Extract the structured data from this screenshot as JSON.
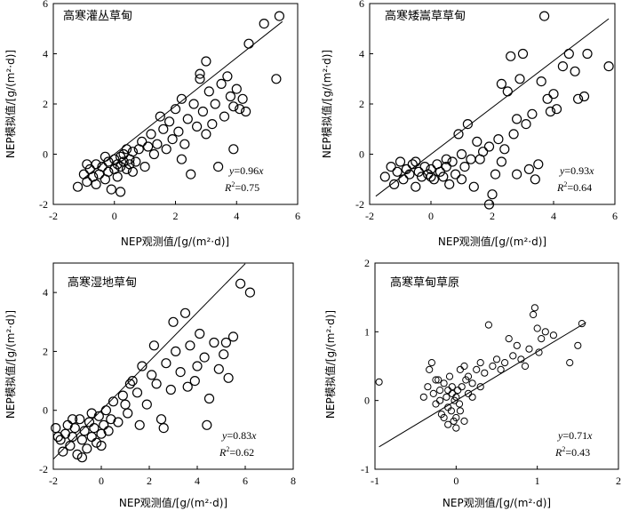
{
  "chart_data": [
    {
      "type": "scatter",
      "title": "高寒灌丛草甸",
      "xlabel": "NEP观测值/[g/(m²·d)]",
      "ylabel": "NEP模拟值/[g/(m²·d)]",
      "xlim": [
        -2,
        6
      ],
      "ylim": [
        -2,
        6
      ],
      "xticks": [
        -2,
        0,
        2,
        4,
        6
      ],
      "yticks": [
        -2,
        0,
        2,
        4,
        6
      ],
      "fit": {
        "slope": 0.96,
        "x_range": [
          -1,
          5.5
        ]
      },
      "equation": {
        "y": "y",
        "eq": "=0.96",
        "x": "x"
      },
      "r2": {
        "r": "R",
        "sup": "2",
        "val": "=0.75"
      },
      "marker_size": 5,
      "points": [
        [
          -1.2,
          -1.3
        ],
        [
          -1.0,
          -0.8
        ],
        [
          -0.9,
          -1.1
        ],
        [
          -0.8,
          -0.6
        ],
        [
          -0.7,
          -0.9
        ],
        [
          -0.6,
          -0.4
        ],
        [
          -0.5,
          -0.8
        ],
        [
          -0.4,
          -0.5
        ],
        [
          -0.3,
          -1.0
        ],
        [
          -0.2,
          -0.3
        ],
        [
          -0.2,
          -0.7
        ],
        [
          -0.1,
          -1.4
        ],
        [
          0.0,
          -0.2
        ],
        [
          0.0,
          -0.6
        ],
        [
          0.1,
          -0.4
        ],
        [
          0.1,
          -0.9
        ],
        [
          0.2,
          -0.1
        ],
        [
          0.2,
          -0.5
        ],
        [
          0.3,
          0.0
        ],
        [
          0.3,
          -0.3
        ],
        [
          0.4,
          -0.6
        ],
        [
          0.4,
          0.2
        ],
        [
          0.5,
          -0.2
        ],
        [
          0.5,
          -0.4
        ],
        [
          0.6,
          0.1
        ],
        [
          0.7,
          -0.3
        ],
        [
          0.8,
          0.2
        ],
        [
          0.9,
          0.5
        ],
        [
          1.0,
          -0.5
        ],
        [
          1.1,
          0.3
        ],
        [
          1.2,
          0.8
        ],
        [
          1.4,
          0.4
        ],
        [
          1.5,
          1.5
        ],
        [
          1.6,
          1.0
        ],
        [
          1.7,
          0.2
        ],
        [
          1.8,
          1.3
        ],
        [
          1.9,
          0.6
        ],
        [
          2.0,
          1.8
        ],
        [
          2.1,
          0.9
        ],
        [
          2.2,
          2.2
        ],
        [
          2.3,
          0.4
        ],
        [
          2.4,
          1.4
        ],
        [
          2.5,
          -0.8
        ],
        [
          2.6,
          2.0
        ],
        [
          2.7,
          1.1
        ],
        [
          2.8,
          3.0
        ],
        [
          2.9,
          1.7
        ],
        [
          3.0,
          0.8
        ],
        [
          3.1,
          2.5
        ],
        [
          3.2,
          1.2
        ],
        [
          3.3,
          2.0
        ],
        [
          3.4,
          -0.5
        ],
        [
          3.5,
          2.8
        ],
        [
          3.6,
          1.5
        ],
        [
          3.7,
          3.1
        ],
        [
          3.8,
          2.3
        ],
        [
          3.9,
          1.9
        ],
        [
          4.0,
          2.6
        ],
        [
          4.1,
          1.8
        ],
        [
          4.2,
          2.2
        ],
        [
          4.3,
          1.7
        ],
        [
          4.4,
          4.4
        ],
        [
          4.9,
          5.2
        ],
        [
          5.3,
          3.0
        ],
        [
          5.4,
          5.5
        ],
        [
          -0.9,
          -0.4
        ],
        [
          -0.6,
          -1.2
        ],
        [
          -0.3,
          -0.1
        ],
        [
          0.2,
          -1.5
        ],
        [
          0.6,
          -0.7
        ],
        [
          1.3,
          0.0
        ],
        [
          2.2,
          -0.2
        ],
        [
          3.0,
          3.7
        ],
        [
          2.8,
          3.2
        ],
        [
          3.9,
          0.2
        ]
      ]
    },
    {
      "type": "scatter",
      "title": "高寒矮嵩草草甸",
      "xlabel": "NEP观测值/[g/(m²·d)]",
      "ylabel": "NEP模拟值/[g/(m²·d)]",
      "xlim": [
        -2,
        6
      ],
      "ylim": [
        -2,
        6
      ],
      "xticks": [
        -2,
        0,
        2,
        4,
        6
      ],
      "yticks": [
        -2,
        0,
        2,
        4,
        6
      ],
      "fit": {
        "slope": 0.93,
        "x_range": [
          -1.8,
          5.8
        ]
      },
      "equation": {
        "y": "y",
        "eq": "=0.93",
        "x": "x"
      },
      "r2": {
        "r": "R",
        "sup": "2",
        "val": "=0.64"
      },
      "marker_size": 5,
      "points": [
        [
          -1.5,
          -0.9
        ],
        [
          -1.3,
          -0.5
        ],
        [
          -1.2,
          -1.2
        ],
        [
          -1.1,
          -0.7
        ],
        [
          -1.0,
          -0.3
        ],
        [
          -0.9,
          -1.0
        ],
        [
          -0.8,
          -0.6
        ],
        [
          -0.7,
          -0.8
        ],
        [
          -0.6,
          -0.4
        ],
        [
          -0.5,
          -1.3
        ],
        [
          -0.4,
          -0.7
        ],
        [
          -0.3,
          -0.9
        ],
        [
          -0.2,
          -0.5
        ],
        [
          -0.1,
          -0.8
        ],
        [
          0.0,
          -0.6
        ],
        [
          0.1,
          -1.0
        ],
        [
          0.2,
          -0.4
        ],
        [
          0.3,
          -0.7
        ],
        [
          0.4,
          -0.9
        ],
        [
          0.5,
          -0.5
        ],
        [
          0.6,
          -1.2
        ],
        [
          0.7,
          -0.3
        ],
        [
          0.8,
          -0.8
        ],
        [
          0.9,
          0.8
        ],
        [
          1.0,
          -1.0
        ],
        [
          1.1,
          -0.5
        ],
        [
          1.2,
          1.2
        ],
        [
          1.4,
          -1.3
        ],
        [
          1.5,
          0.5
        ],
        [
          1.6,
          -0.2
        ],
        [
          1.7,
          0.1
        ],
        [
          1.9,
          0.3
        ],
        [
          2.0,
          -1.6
        ],
        [
          2.1,
          -0.8
        ],
        [
          2.2,
          0.6
        ],
        [
          2.3,
          2.8
        ],
        [
          2.4,
          0.2
        ],
        [
          2.5,
          2.5
        ],
        [
          2.6,
          3.9
        ],
        [
          2.7,
          0.8
        ],
        [
          2.8,
          1.4
        ],
        [
          2.9,
          3.0
        ],
        [
          3.0,
          4.0
        ],
        [
          3.1,
          1.2
        ],
        [
          3.2,
          -0.6
        ],
        [
          3.3,
          1.6
        ],
        [
          3.5,
          -0.4
        ],
        [
          3.6,
          2.9
        ],
        [
          3.7,
          5.5
        ],
        [
          3.8,
          2.2
        ],
        [
          3.9,
          1.7
        ],
        [
          4.0,
          2.4
        ],
        [
          4.1,
          1.8
        ],
        [
          4.3,
          3.5
        ],
        [
          4.5,
          4.0
        ],
        [
          4.7,
          3.3
        ],
        [
          4.8,
          2.2
        ],
        [
          5.0,
          2.3
        ],
        [
          5.1,
          4.0
        ],
        [
          5.8,
          3.5
        ],
        [
          -0.5,
          -0.3
        ],
        [
          0.0,
          -0.9
        ],
        [
          0.5,
          -0.2
        ],
        [
          1.0,
          0.0
        ],
        [
          1.3,
          -0.2
        ],
        [
          2.3,
          -0.3
        ],
        [
          2.8,
          -0.8
        ],
        [
          3.4,
          -1.0
        ],
        [
          1.9,
          -2.0
        ]
      ]
    },
    {
      "type": "scatter",
      "title": "高寒湿地草甸",
      "xlabel": "NEP观测值/[g/(m²·d)]",
      "ylabel": "NEP模拟值/[g/(m²·d)]",
      "xlim": [
        -2,
        8
      ],
      "ylim": [
        -2,
        5
      ],
      "xticks": [
        -2,
        0,
        2,
        4,
        6,
        8
      ],
      "yticks": [
        -2,
        0,
        2,
        4
      ],
      "fit": {
        "slope": 0.83,
        "x_range": [
          -2.0,
          6.0
        ]
      },
      "equation": {
        "y": "y",
        "eq": "=0.83",
        "x": "x"
      },
      "r2": {
        "r": "R",
        "sup": "2",
        "val": "=0.62"
      },
      "marker_size": 5,
      "points": [
        [
          -1.9,
          -0.6
        ],
        [
          -1.7,
          -1.0
        ],
        [
          -1.6,
          -1.4
        ],
        [
          -1.5,
          -0.8
        ],
        [
          -1.4,
          -0.5
        ],
        [
          -1.3,
          -1.2
        ],
        [
          -1.2,
          -0.9
        ],
        [
          -1.1,
          -0.6
        ],
        [
          -1.0,
          -1.5
        ],
        [
          -0.9,
          -0.3
        ],
        [
          -0.8,
          -1.0
        ],
        [
          -0.7,
          -0.7
        ],
        [
          -0.6,
          -1.3
        ],
        [
          -0.5,
          -0.4
        ],
        [
          -0.4,
          -0.9
        ],
        [
          -0.3,
          -0.6
        ],
        [
          -0.2,
          -1.1
        ],
        [
          -0.1,
          -0.2
        ],
        [
          0.0,
          -0.8
        ],
        [
          0.1,
          -0.5
        ],
        [
          0.2,
          0.0
        ],
        [
          0.3,
          -0.7
        ],
        [
          0.5,
          0.3
        ],
        [
          0.7,
          -0.4
        ],
        [
          0.9,
          0.5
        ],
        [
          1.1,
          -0.1
        ],
        [
          1.3,
          1.0
        ],
        [
          1.5,
          0.6
        ],
        [
          1.7,
          1.5
        ],
        [
          1.9,
          0.2
        ],
        [
          2.1,
          1.2
        ],
        [
          2.3,
          0.9
        ],
        [
          2.5,
          -0.3
        ],
        [
          2.7,
          1.6
        ],
        [
          2.9,
          0.7
        ],
        [
          3.1,
          2.0
        ],
        [
          3.3,
          1.3
        ],
        [
          3.5,
          3.3
        ],
        [
          3.7,
          2.2
        ],
        [
          3.9,
          1.0
        ],
        [
          4.1,
          2.6
        ],
        [
          4.3,
          1.8
        ],
        [
          4.5,
          0.4
        ],
        [
          4.7,
          2.3
        ],
        [
          4.9,
          1.4
        ],
        [
          5.1,
          1.9
        ],
        [
          5.3,
          1.1
        ],
        [
          5.5,
          2.5
        ],
        [
          5.8,
          4.3
        ],
        [
          6.2,
          4.0
        ],
        [
          -1.8,
          -0.9
        ],
        [
          -1.2,
          -0.3
        ],
        [
          -0.8,
          -1.6
        ],
        [
          -0.4,
          -0.1
        ],
        [
          0.0,
          -1.2
        ],
        [
          0.4,
          -0.3
        ],
        [
          1.0,
          0.2
        ],
        [
          1.6,
          -0.5
        ],
        [
          2.6,
          -0.6
        ],
        [
          3.0,
          3.0
        ],
        [
          4.0,
          1.5
        ],
        [
          4.4,
          -0.5
        ],
        [
          3.6,
          0.8
        ],
        [
          5.2,
          2.3
        ],
        [
          2.2,
          2.2
        ],
        [
          1.2,
          0.9
        ]
      ]
    },
    {
      "type": "scatter",
      "title": "高寒草甸草原",
      "xlabel": "NEP观测值/[g/(m²·d)]",
      "ylabel": "NEP模拟值/[g/(m²·d)]",
      "xlim": [
        -1,
        2
      ],
      "ylim": [
        -1,
        2
      ],
      "xticks": [
        -1,
        0,
        1,
        2
      ],
      "yticks": [
        -1,
        0,
        1,
        2
      ],
      "fit": {
        "slope": 0.71,
        "x_range": [
          -0.95,
          1.6
        ]
      },
      "equation": {
        "y": "y",
        "eq": "=0.71",
        "x": "x"
      },
      "r2": {
        "r": "R",
        "sup": "2",
        "val": "=0.43"
      },
      "marker_size": 3.6,
      "points": [
        [
          -0.95,
          0.27
        ],
        [
          -0.4,
          0.05
        ],
        [
          -0.35,
          0.2
        ],
        [
          -0.33,
          0.45
        ],
        [
          -0.3,
          0.55
        ],
        [
          -0.28,
          0.1
        ],
        [
          -0.25,
          -0.05
        ],
        [
          -0.22,
          0.3
        ],
        [
          -0.2,
          0.15
        ],
        [
          -0.18,
          -0.2
        ],
        [
          -0.15,
          0.25
        ],
        [
          -0.12,
          0.05
        ],
        [
          -0.1,
          -0.1
        ],
        [
          -0.08,
          0.35
        ],
        [
          -0.06,
          -0.15
        ],
        [
          -0.05,
          0.1
        ],
        [
          -0.03,
          -0.3
        ],
        [
          -0.02,
          0.0
        ],
        [
          0.0,
          -0.25
        ],
        [
          0.02,
          0.15
        ],
        [
          0.04,
          -0.05
        ],
        [
          0.05,
          0.45
        ],
        [
          0.07,
          0.2
        ],
        [
          0.1,
          0.5
        ],
        [
          0.12,
          0.3
        ],
        [
          0.15,
          0.1
        ],
        [
          0.2,
          0.25
        ],
        [
          0.25,
          0.45
        ],
        [
          0.3,
          0.55
        ],
        [
          0.35,
          0.4
        ],
        [
          0.4,
          1.1
        ],
        [
          0.45,
          0.5
        ],
        [
          0.5,
          0.6
        ],
        [
          0.55,
          0.45
        ],
        [
          0.6,
          0.55
        ],
        [
          0.65,
          0.9
        ],
        [
          0.7,
          0.65
        ],
        [
          0.75,
          0.8
        ],
        [
          0.8,
          0.6
        ],
        [
          0.85,
          0.5
        ],
        [
          0.9,
          0.75
        ],
        [
          0.95,
          1.25
        ],
        [
          0.97,
          1.35
        ],
        [
          1.0,
          1.05
        ],
        [
          1.02,
          0.7
        ],
        [
          1.05,
          0.9
        ],
        [
          1.1,
          1.0
        ],
        [
          1.2,
          0.95
        ],
        [
          1.4,
          0.55
        ],
        [
          1.5,
          0.8
        ],
        [
          1.55,
          1.12
        ],
        [
          -0.1,
          -0.35
        ],
        [
          0.0,
          -0.4
        ],
        [
          -0.15,
          -0.25
        ],
        [
          0.05,
          -0.15
        ],
        [
          -0.05,
          0.2
        ],
        [
          0.1,
          -0.3
        ],
        [
          0.15,
          0.35
        ],
        [
          0.3,
          0.2
        ],
        [
          0.2,
          0.05
        ],
        [
          -0.2,
          0.0
        ],
        [
          -0.25,
          0.3
        ],
        [
          0.0,
          0.05
        ],
        [
          -0.1,
          0.15
        ]
      ]
    }
  ]
}
